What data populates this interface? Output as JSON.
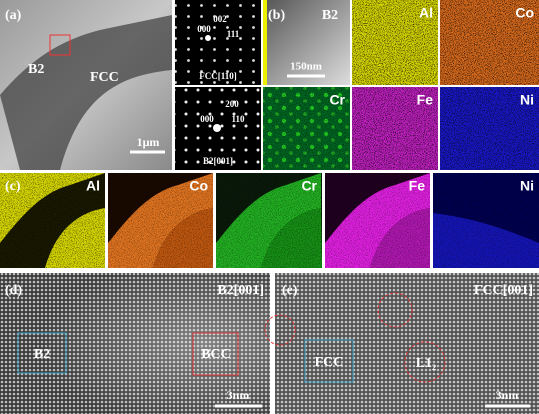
{
  "panel_a": {
    "label": "(a)",
    "phases": [
      "B2",
      "FCC"
    ],
    "scale_bar": "1μm"
  },
  "diffraction": [
    {
      "spots": [
        "002",
        "111",
        "000"
      ],
      "zone": "FCC[110]"
    },
    {
      "spots": [
        "200",
        "110",
        "000"
      ],
      "zone": "B2[001]"
    }
  ],
  "panel_b": {
    "label": "(b)",
    "phase": "B2",
    "scale_bar": "150nm",
    "elements": [
      "Al",
      "Co",
      "Cr",
      "Fe",
      "Ni"
    ]
  },
  "panel_c": {
    "label": "(c)",
    "elements": [
      "Al",
      "Co",
      "Cr",
      "Fe",
      "Ni"
    ]
  },
  "panel_d": {
    "label": "(d)",
    "zone": "B2[001]",
    "regions": [
      "B2",
      "BCC"
    ],
    "scale_bar": "3nm"
  },
  "panel_e": {
    "label": "(e)",
    "zone": "FCC[001]",
    "regions": [
      "FCC",
      "L1₂"
    ],
    "scale_bar": "3nm"
  }
}
